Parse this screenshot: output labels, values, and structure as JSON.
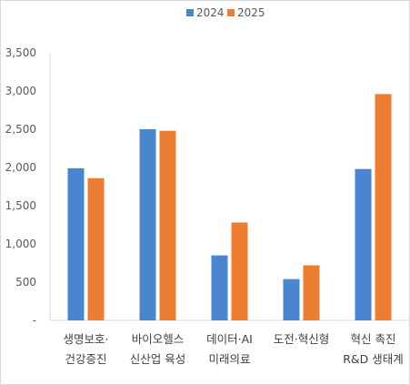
{
  "chart_data": {
    "type": "bar",
    "categories": [
      [
        "생명보호·",
        "건강증진"
      ],
      [
        "바이오헬스",
        "신산업 육성"
      ],
      [
        "데이터·AI",
        "미래의료"
      ],
      [
        "도전·혁신형"
      ],
      [
        "혁신 촉진",
        "R&D 생태계"
      ]
    ],
    "series": [
      {
        "name": "2024",
        "color": "#4a86d0",
        "values": [
          1990,
          2500,
          850,
          540,
          1980
        ]
      },
      {
        "name": "2025",
        "color": "#ed7d31",
        "values": [
          1860,
          2480,
          1280,
          720,
          2960
        ]
      }
    ],
    "y_ticks": [
      "3,500",
      "3,000",
      "2,500",
      "2,000",
      "1,500",
      "1,000",
      "500",
      "-"
    ],
    "y_tick_values": [
      3500,
      3000,
      2500,
      2000,
      1500,
      1000,
      500,
      0
    ],
    "ylim": [
      0,
      3500
    ],
    "grid": false,
    "legend_position": "top-center"
  }
}
